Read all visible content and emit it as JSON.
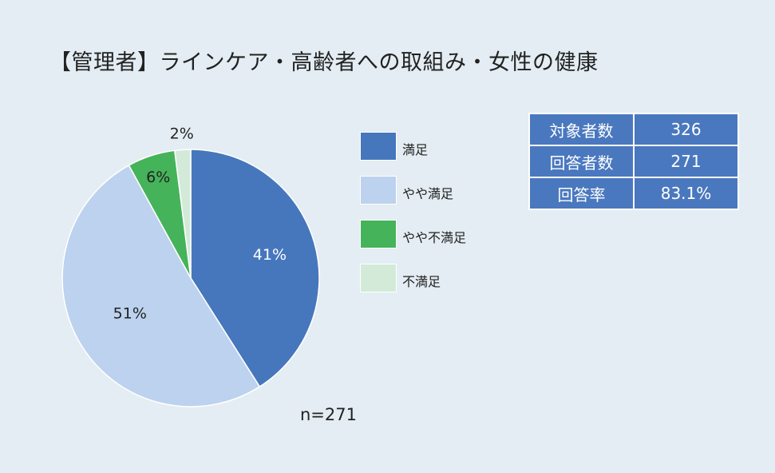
{
  "title": "【管理者】ラインケア・高齢者への取組み・女性の健康",
  "stats": [
    {
      "label": "対象者数",
      "value": "326"
    },
    {
      "label": "回答者数",
      "value": "271"
    },
    {
      "label": "回答率",
      "value": "83.1%"
    }
  ],
  "n_label": "n=271",
  "chart_data": {
    "type": "pie",
    "title": "",
    "categories": [
      "満足",
      "やや満足",
      "やや不満足",
      "不満足"
    ],
    "values": [
      41,
      51,
      6,
      2
    ],
    "labels": [
      "41%",
      "51%",
      "6%",
      "2%"
    ],
    "colors": [
      "#4677bd",
      "#bcd2ee",
      "#45b35a",
      "#d3ead9"
    ],
    "label_colors": [
      "#ffffff",
      "#222222",
      "#222222",
      "#222222"
    ],
    "start": "12 o'clock",
    "direction": "clockwise",
    "legend": "right"
  }
}
